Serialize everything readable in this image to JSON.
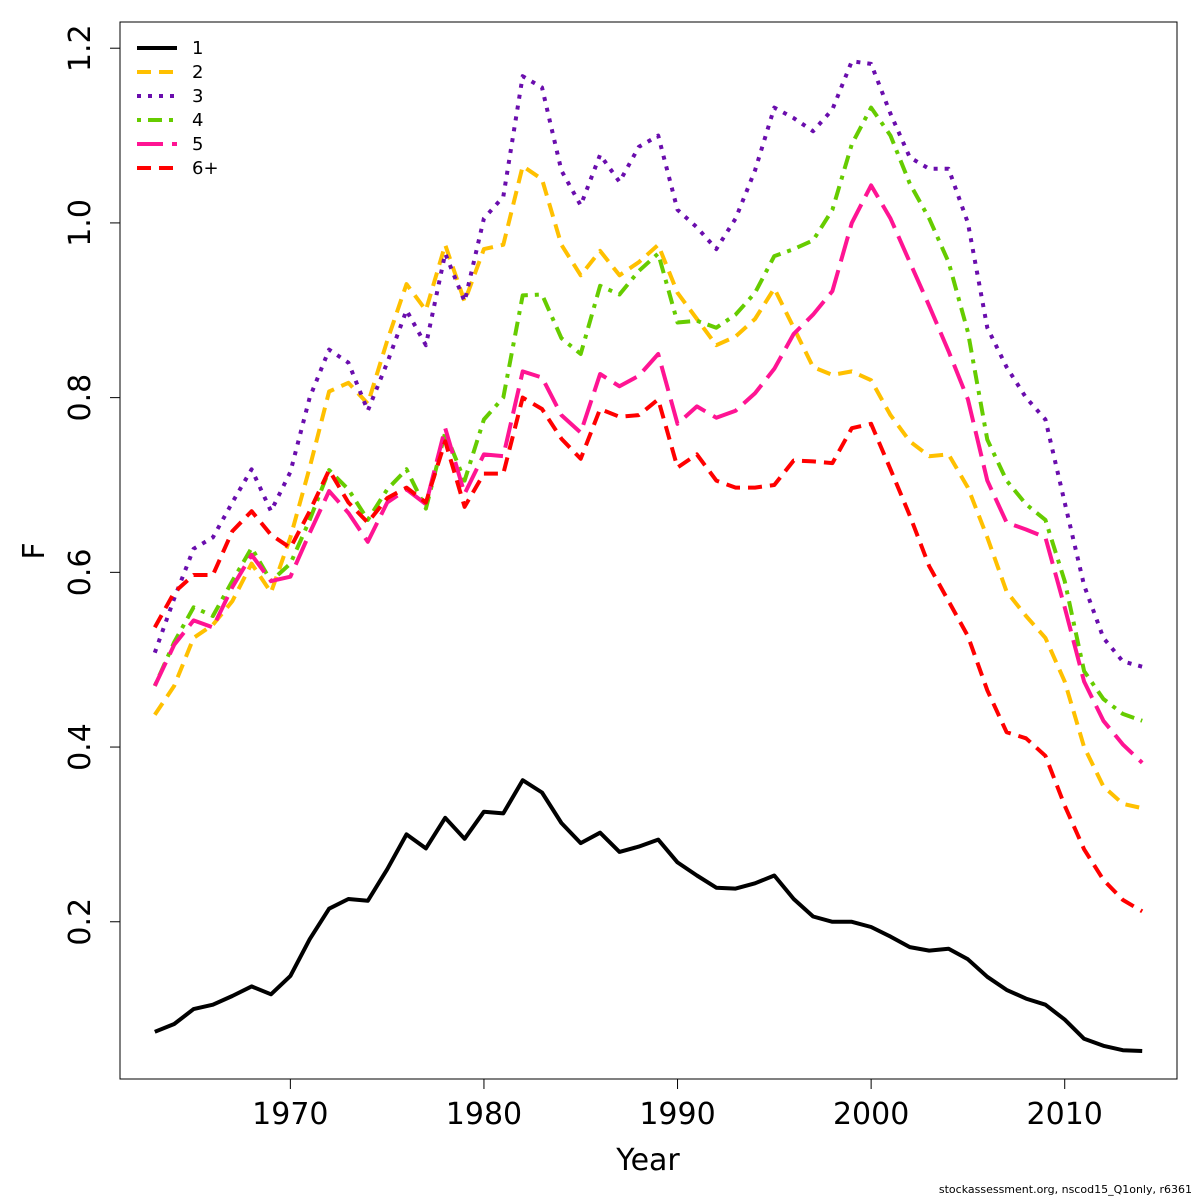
{
  "chart_data": {
    "type": "line",
    "xlabel": "Year",
    "ylabel": "F",
    "xlim": [
      1961.2,
      2015.8
    ],
    "ylim": [
      0.02,
      1.23
    ],
    "xticks": [
      1970,
      1980,
      1990,
      2000,
      2010
    ],
    "yticks": [
      0.2,
      0.4,
      0.6,
      0.8,
      1.0,
      1.2
    ],
    "ytick_labels": [
      "0.2",
      "0.4",
      "0.6",
      "0.8",
      "1.0",
      "1.2"
    ],
    "grid": false,
    "legend_position": "top-left",
    "x": [
      1963,
      1964,
      1965,
      1966,
      1967,
      1968,
      1969,
      1970,
      1971,
      1972,
      1973,
      1974,
      1975,
      1976,
      1977,
      1978,
      1979,
      1980,
      1981,
      1982,
      1983,
      1984,
      1985,
      1986,
      1987,
      1988,
      1989,
      1990,
      1991,
      1992,
      1993,
      1994,
      1995,
      1996,
      1997,
      1998,
      1999,
      2000,
      2001,
      2002,
      2003,
      2004,
      2005,
      2006,
      2007,
      2008,
      2009,
      2010,
      2011,
      2012,
      2013,
      2014
    ],
    "series": [
      {
        "name": "1",
        "color": "#000000",
        "dash": "solid",
        "values": [
          0.074,
          0.083,
          0.1,
          0.105,
          0.115,
          0.126,
          0.117,
          0.138,
          0.18,
          0.215,
          0.226,
          0.224,
          0.26,
          0.3,
          0.284,
          0.319,
          0.295,
          0.326,
          0.324,
          0.362,
          0.348,
          0.313,
          0.29,
          0.302,
          0.28,
          0.286,
          0.294,
          0.268,
          0.253,
          0.239,
          0.238,
          0.244,
          0.253,
          0.226,
          0.206,
          0.2,
          0.2,
          0.194,
          0.183,
          0.171,
          0.167,
          0.169,
          0.157,
          0.137,
          0.122,
          0.112,
          0.105,
          0.088,
          0.066,
          0.058,
          0.053,
          0.052
        ]
      },
      {
        "name": "2",
        "color": "#FFC000",
        "dash": "dashed",
        "values": [
          0.437,
          0.47,
          0.525,
          0.54,
          0.567,
          0.61,
          0.577,
          0.64,
          0.72,
          0.807,
          0.817,
          0.793,
          0.865,
          0.93,
          0.9,
          0.975,
          0.91,
          0.97,
          0.975,
          1.065,
          1.05,
          0.975,
          0.94,
          0.968,
          0.94,
          0.955,
          0.975,
          0.92,
          0.89,
          0.86,
          0.87,
          0.89,
          0.925,
          0.88,
          0.835,
          0.826,
          0.83,
          0.82,
          0.78,
          0.75,
          0.733,
          0.735,
          0.697,
          0.64,
          0.578,
          0.55,
          0.525,
          0.475,
          0.4,
          0.355,
          0.335,
          0.33
        ]
      },
      {
        "name": "3",
        "color": "#6A0DAD",
        "dash": "dotted",
        "values": [
          0.508,
          0.57,
          0.627,
          0.64,
          0.68,
          0.718,
          0.67,
          0.715,
          0.8,
          0.855,
          0.84,
          0.785,
          0.84,
          0.9,
          0.86,
          0.965,
          0.91,
          1.005,
          1.03,
          1.168,
          1.155,
          1.06,
          1.02,
          1.078,
          1.047,
          1.087,
          1.1,
          1.015,
          0.995,
          0.97,
          1.005,
          1.06,
          1.132,
          1.12,
          1.105,
          1.13,
          1.185,
          1.182,
          1.125,
          1.075,
          1.062,
          1.062,
          1.0,
          0.88,
          0.835,
          0.8,
          0.775,
          0.68,
          0.585,
          0.525,
          0.498,
          0.492
        ]
      },
      {
        "name": "4",
        "color": "#66CC00",
        "dash": "dotdash",
        "values": [
          0.47,
          0.52,
          0.56,
          0.55,
          0.59,
          0.628,
          0.59,
          0.61,
          0.66,
          0.717,
          0.695,
          0.66,
          0.695,
          0.718,
          0.673,
          0.76,
          0.705,
          0.775,
          0.8,
          0.917,
          0.918,
          0.868,
          0.85,
          0.928,
          0.918,
          0.945,
          0.965,
          0.886,
          0.888,
          0.88,
          0.895,
          0.92,
          0.962,
          0.97,
          0.98,
          1.015,
          1.09,
          1.132,
          1.1,
          1.045,
          1.005,
          0.955,
          0.875,
          0.752,
          0.705,
          0.678,
          0.66,
          0.59,
          0.487,
          0.455,
          0.438,
          0.43
        ]
      },
      {
        "name": "5",
        "color": "#FF1493",
        "dash": "longdash",
        "values": [
          0.47,
          0.517,
          0.545,
          0.537,
          0.583,
          0.62,
          0.59,
          0.595,
          0.645,
          0.693,
          0.668,
          0.635,
          0.68,
          0.695,
          0.678,
          0.765,
          0.69,
          0.735,
          0.733,
          0.83,
          0.823,
          0.78,
          0.76,
          0.827,
          0.813,
          0.825,
          0.85,
          0.77,
          0.79,
          0.777,
          0.785,
          0.805,
          0.833,
          0.873,
          0.895,
          0.922,
          1.0,
          1.043,
          1.005,
          0.955,
          0.905,
          0.853,
          0.798,
          0.705,
          0.657,
          0.649,
          0.64,
          0.56,
          0.475,
          0.43,
          0.403,
          0.382
        ]
      },
      {
        "name": "6+",
        "color": "#FF0000",
        "dash": "dashed",
        "values": [
          0.537,
          0.577,
          0.597,
          0.597,
          0.647,
          0.67,
          0.643,
          0.628,
          0.67,
          0.717,
          0.68,
          0.657,
          0.685,
          0.697,
          0.68,
          0.75,
          0.675,
          0.713,
          0.713,
          0.8,
          0.787,
          0.753,
          0.73,
          0.787,
          0.778,
          0.78,
          0.798,
          0.72,
          0.735,
          0.705,
          0.697,
          0.697,
          0.7,
          0.728,
          0.727,
          0.725,
          0.765,
          0.77,
          0.718,
          0.665,
          0.607,
          0.567,
          0.527,
          0.465,
          0.417,
          0.41,
          0.39,
          0.333,
          0.283,
          0.248,
          0.225,
          0.212
        ]
      }
    ]
  },
  "credit": "stockassessment.org, nscod15_Q1only, r6361"
}
